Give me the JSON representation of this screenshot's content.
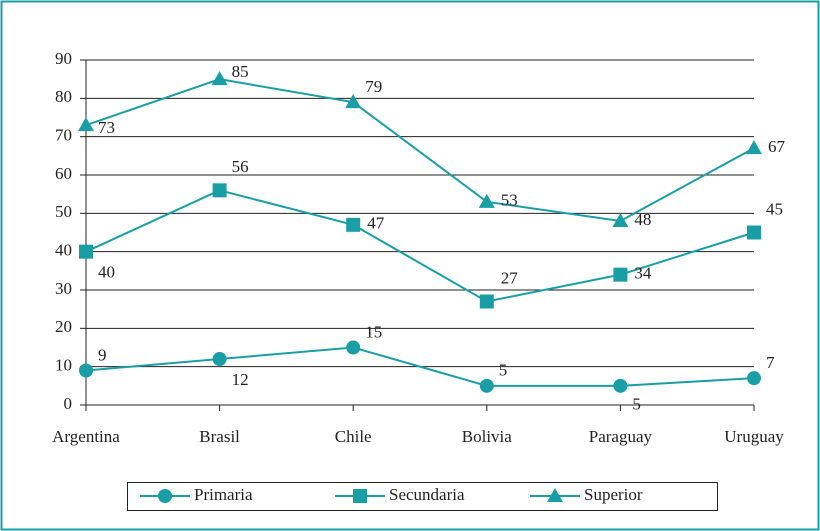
{
  "chart_data": {
    "type": "line",
    "categories": [
      "Argentina",
      "Brasil",
      "Chile",
      "Bolivia",
      "Paraguay",
      "Uruguay"
    ],
    "series": [
      {
        "name": "Primaria",
        "color": "#1a9ea6",
        "marker": "circle",
        "values": [
          9,
          12,
          15,
          5,
          5,
          7
        ]
      },
      {
        "name": "Secundaria",
        "color": "#1a9ea6",
        "marker": "square",
        "values": [
          40,
          56,
          47,
          27,
          34,
          45
        ]
      },
      {
        "name": "Superior",
        "color": "#1a9ea6",
        "marker": "triangle",
        "values": [
          73,
          85,
          79,
          53,
          48,
          67
        ]
      }
    ],
    "ylim": [
      0,
      90
    ],
    "yticks": [
      0,
      10,
      20,
      30,
      40,
      50,
      60,
      70,
      80,
      90
    ],
    "grid": true,
    "legend": "bottom"
  }
}
